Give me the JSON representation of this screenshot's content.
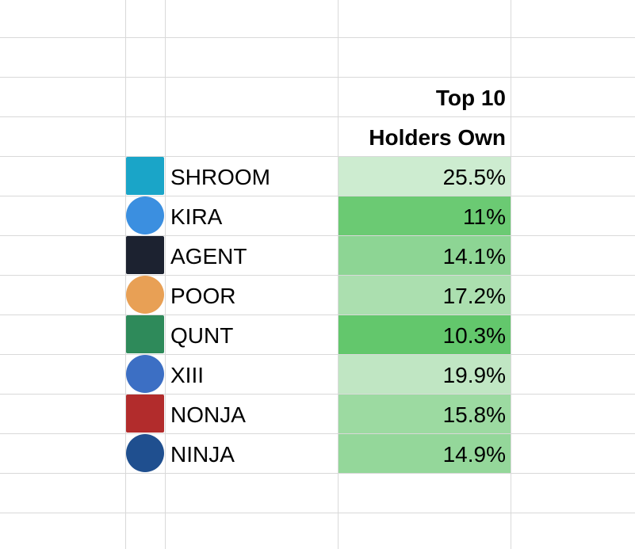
{
  "table": {
    "header": [
      "Top 10",
      "Holders Own"
    ],
    "rows": [
      {
        "name": "SHROOM",
        "value": "25.5%",
        "fill": "#cdecd0",
        "icon": "#1aa5c8"
      },
      {
        "name": "KIRA",
        "value": "11%",
        "fill": "#6bca73",
        "icon": "#3b8fe0"
      },
      {
        "name": "AGENT",
        "value": "14.1%",
        "fill": "#8dd594",
        "icon": "#1c2230"
      },
      {
        "name": "POOR",
        "value": "17.2%",
        "fill": "#abdfaf",
        "icon": "#e8a055"
      },
      {
        "name": "QUNT",
        "value": "10.3%",
        "fill": "#63c76c",
        "icon": "#2e8a5a"
      },
      {
        "name": "XIII",
        "value": "19.9%",
        "fill": "#c0e6c3",
        "icon": "#3c6fc4"
      },
      {
        "name": "NONJA",
        "value": "15.8%",
        "fill": "#9cdaa1",
        "icon": "#b22c2c"
      },
      {
        "name": "NINJA",
        "value": "14.9%",
        "fill": "#94d79a",
        "icon": "#1f4f8f"
      }
    ]
  }
}
